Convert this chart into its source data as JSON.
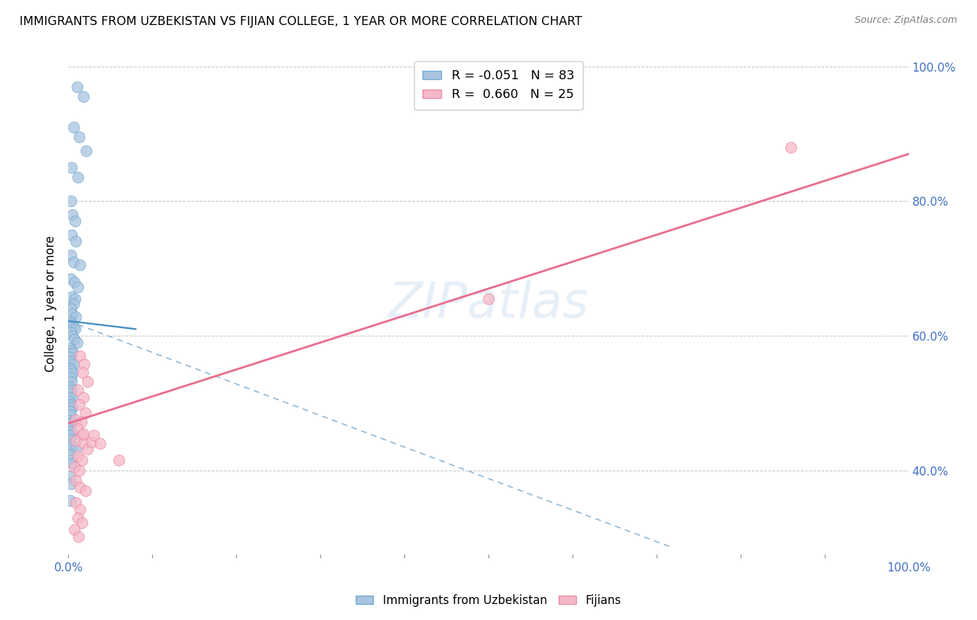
{
  "title": "IMMIGRANTS FROM UZBEKISTAN VS FIJIAN COLLEGE, 1 YEAR OR MORE CORRELATION CHART",
  "source": "Source: ZipAtlas.com",
  "ylabel": "College, 1 year or more",
  "blue_dots": [
    [
      0.01,
      0.97
    ],
    [
      0.018,
      0.955
    ],
    [
      0.006,
      0.91
    ],
    [
      0.013,
      0.895
    ],
    [
      0.021,
      0.875
    ],
    [
      0.004,
      0.85
    ],
    [
      0.011,
      0.835
    ],
    [
      0.003,
      0.8
    ],
    [
      0.005,
      0.78
    ],
    [
      0.008,
      0.77
    ],
    [
      0.004,
      0.75
    ],
    [
      0.009,
      0.74
    ],
    [
      0.003,
      0.72
    ],
    [
      0.006,
      0.71
    ],
    [
      0.014,
      0.705
    ],
    [
      0.003,
      0.685
    ],
    [
      0.007,
      0.68
    ],
    [
      0.011,
      0.672
    ],
    [
      0.004,
      0.658
    ],
    [
      0.008,
      0.655
    ],
    [
      0.006,
      0.648
    ],
    [
      0.003,
      0.64
    ],
    [
      0.005,
      0.632
    ],
    [
      0.009,
      0.628
    ],
    [
      0.002,
      0.622
    ],
    [
      0.004,
      0.618
    ],
    [
      0.006,
      0.614
    ],
    [
      0.008,
      0.61
    ],
    [
      0.003,
      0.605
    ],
    [
      0.005,
      0.6
    ],
    [
      0.007,
      0.595
    ],
    [
      0.01,
      0.59
    ],
    [
      0.002,
      0.582
    ],
    [
      0.004,
      0.578
    ],
    [
      0.005,
      0.574
    ],
    [
      0.002,
      0.568
    ],
    [
      0.004,
      0.562
    ],
    [
      0.006,
      0.558
    ],
    [
      0.002,
      0.552
    ],
    [
      0.004,
      0.548
    ],
    [
      0.005,
      0.544
    ],
    [
      0.003,
      0.538
    ],
    [
      0.004,
      0.532
    ],
    [
      0.002,
      0.524
    ],
    [
      0.004,
      0.52
    ],
    [
      0.003,
      0.514
    ],
    [
      0.004,
      0.508
    ],
    [
      0.002,
      0.502
    ],
    [
      0.003,
      0.498
    ],
    [
      0.005,
      0.494
    ],
    [
      0.002,
      0.488
    ],
    [
      0.003,
      0.482
    ],
    [
      0.002,
      0.474
    ],
    [
      0.003,
      0.47
    ],
    [
      0.002,
      0.464
    ],
    [
      0.004,
      0.458
    ],
    [
      0.002,
      0.452
    ],
    [
      0.003,
      0.446
    ],
    [
      0.002,
      0.438
    ],
    [
      0.003,
      0.434
    ],
    [
      0.009,
      0.432
    ],
    [
      0.002,
      0.424
    ],
    [
      0.003,
      0.415
    ],
    [
      0.005,
      0.41
    ],
    [
      0.002,
      0.392
    ],
    [
      0.003,
      0.38
    ],
    [
      0.002,
      0.355
    ]
  ],
  "pink_dots": [
    [
      0.014,
      0.57
    ],
    [
      0.019,
      0.558
    ],
    [
      0.017,
      0.545
    ],
    [
      0.023,
      0.532
    ],
    [
      0.011,
      0.52
    ],
    [
      0.018,
      0.508
    ],
    [
      0.013,
      0.498
    ],
    [
      0.02,
      0.486
    ],
    [
      0.009,
      0.475
    ],
    [
      0.015,
      0.472
    ],
    [
      0.011,
      0.462
    ],
    [
      0.016,
      0.452
    ],
    [
      0.009,
      0.444
    ],
    [
      0.018,
      0.44
    ],
    [
      0.023,
      0.432
    ],
    [
      0.011,
      0.422
    ],
    [
      0.016,
      0.415
    ],
    [
      0.007,
      0.405
    ],
    [
      0.013,
      0.4
    ],
    [
      0.009,
      0.385
    ],
    [
      0.014,
      0.375
    ],
    [
      0.02,
      0.37
    ],
    [
      0.009,
      0.352
    ],
    [
      0.014,
      0.342
    ],
    [
      0.011,
      0.33
    ],
    [
      0.016,
      0.322
    ],
    [
      0.007,
      0.312
    ],
    [
      0.012,
      0.302
    ],
    [
      0.018,
      0.455
    ],
    [
      0.028,
      0.442
    ],
    [
      0.03,
      0.452
    ],
    [
      0.038,
      0.44
    ],
    [
      0.06,
      0.415
    ],
    [
      0.5,
      0.655
    ],
    [
      0.86,
      0.88
    ]
  ],
  "blue_line_solid": {
    "x": [
      0.0,
      0.08
    ],
    "y": [
      0.622,
      0.61
    ]
  },
  "blue_line_dashed": {
    "x": [
      0.0,
      0.72
    ],
    "y": [
      0.622,
      0.285
    ]
  },
  "pink_line": {
    "x": [
      0.0,
      1.0
    ],
    "y": [
      0.47,
      0.87
    ]
  },
  "watermark": "ZIPatlas",
  "xlim": [
    0.0,
    1.0
  ],
  "ylim": [
    0.27,
    1.025
  ],
  "ytick_vals": [
    0.4,
    0.6,
    0.8,
    1.0
  ],
  "ytick_labels": [
    "40.0%",
    "60.0%",
    "80.0%",
    "100.0%"
  ],
  "xtick_positions": [
    0.0,
    0.5,
    1.0
  ],
  "xtick_labels_shown": [
    "0.0%",
    "",
    "100.0%"
  ]
}
